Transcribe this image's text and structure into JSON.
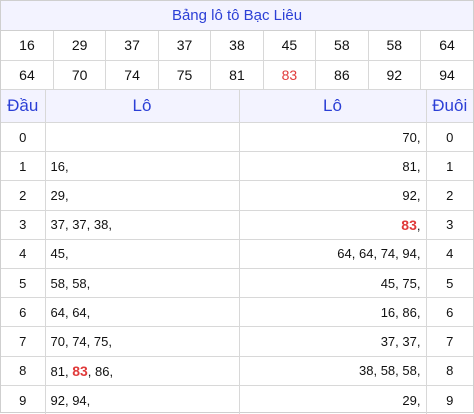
{
  "title": "Bảng lô tô Bạc Liêu",
  "numbers_row1": [
    "16",
    "29",
    "37",
    "37",
    "38",
    "45",
    "58",
    "58",
    "64"
  ],
  "numbers_row2": [
    "64",
    "70",
    "74",
    "75",
    "81",
    "83",
    "86",
    "92",
    "94"
  ],
  "highlight_number": "83",
  "headers": {
    "dau": "Đầu",
    "lo_left": "Lô",
    "lo_right": "Lô",
    "duoi": "Đuôi"
  },
  "rows": [
    {
      "dau": "0",
      "left": [],
      "right": [
        "70"
      ],
      "duoi": "0"
    },
    {
      "dau": "1",
      "left": [
        "16"
      ],
      "right": [
        "81"
      ],
      "duoi": "1"
    },
    {
      "dau": "2",
      "left": [
        "29"
      ],
      "right": [
        "92"
      ],
      "duoi": "2"
    },
    {
      "dau": "3",
      "left": [
        "37",
        "37",
        "38"
      ],
      "right": [
        "83"
      ],
      "duoi": "3"
    },
    {
      "dau": "4",
      "left": [
        "45"
      ],
      "right": [
        "64",
        "64",
        "74",
        "94"
      ],
      "duoi": "4"
    },
    {
      "dau": "5",
      "left": [
        "58",
        "58"
      ],
      "right": [
        "45",
        "75"
      ],
      "duoi": "5"
    },
    {
      "dau": "6",
      "left": [
        "64",
        "64"
      ],
      "right": [
        "16",
        "86"
      ],
      "duoi": "6"
    },
    {
      "dau": "7",
      "left": [
        "70",
        "74",
        "75"
      ],
      "right": [
        "37",
        "37"
      ],
      "duoi": "7"
    },
    {
      "dau": "8",
      "left": [
        "81",
        "83",
        "86"
      ],
      "right": [
        "38",
        "58",
        "58"
      ],
      "duoi": "8"
    },
    {
      "dau": "9",
      "left": [
        "92",
        "94"
      ],
      "right": [
        "29"
      ],
      "duoi": "9"
    }
  ],
  "colors": {
    "accent_blue": "#2b3fd6",
    "highlight_red": "#e03a3a",
    "header_bg": "#f3f3ff"
  }
}
